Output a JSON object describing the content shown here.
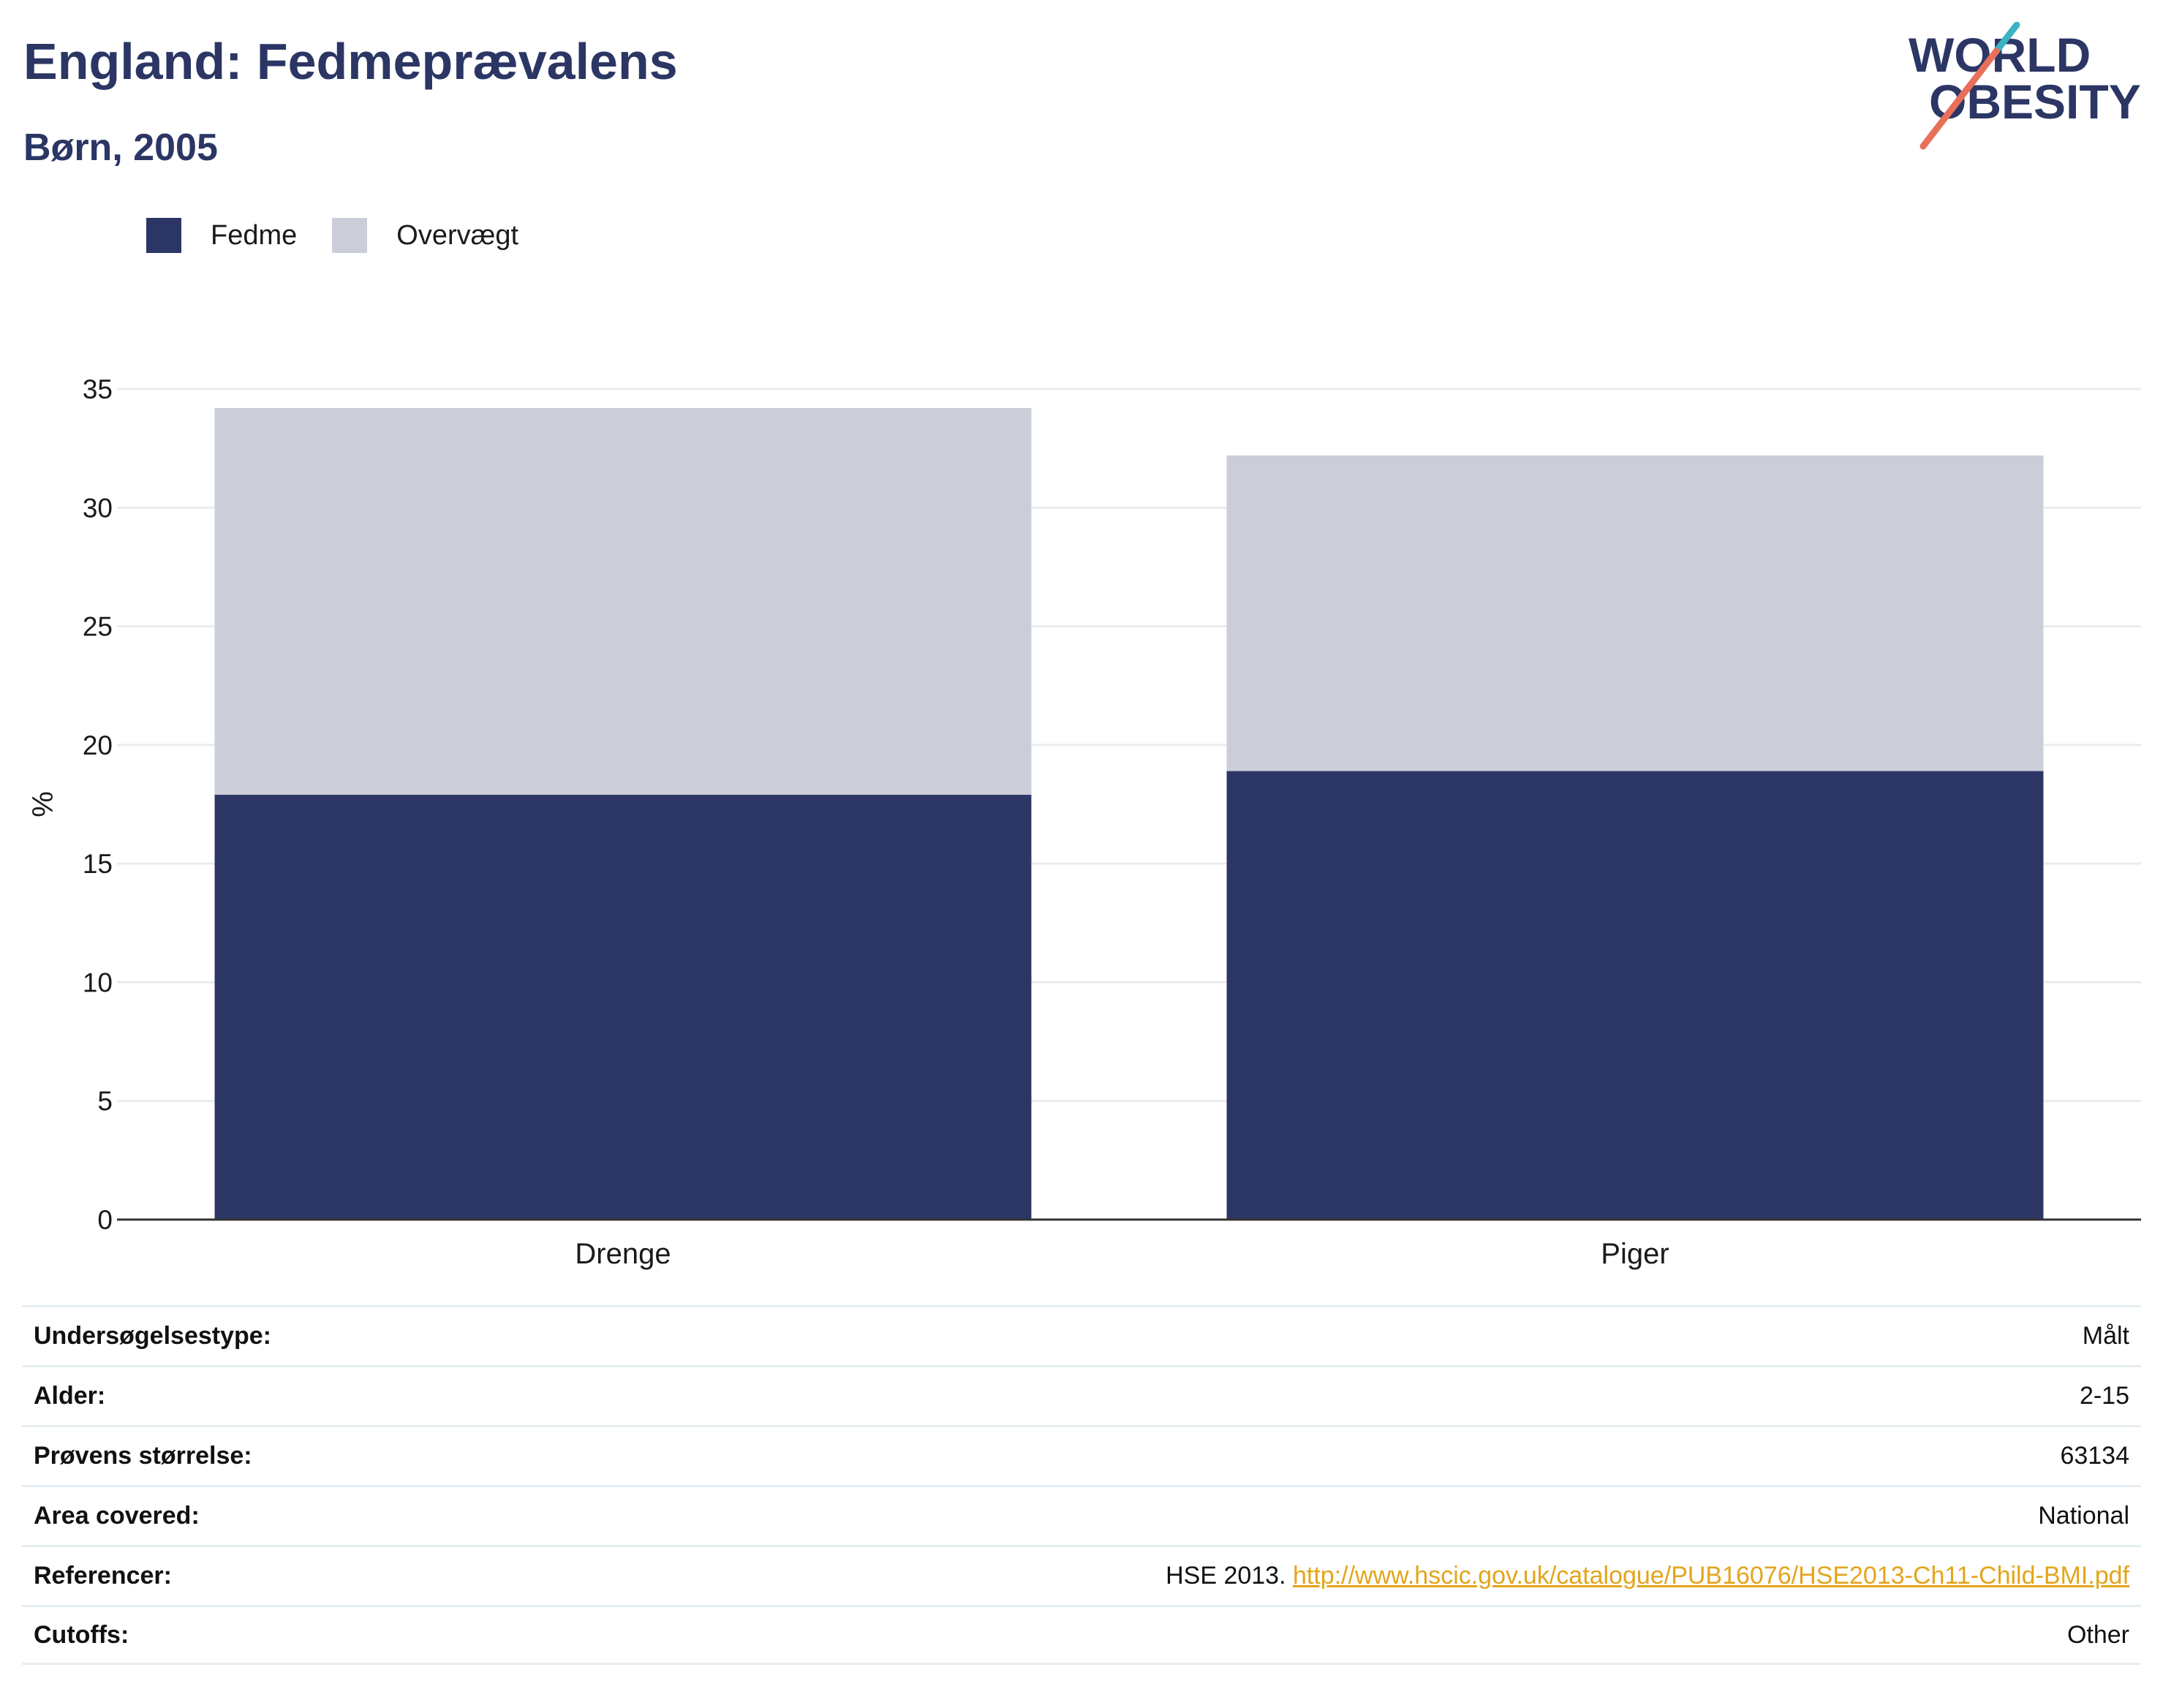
{
  "header": {
    "title": "England: Fedmeprævalens",
    "subtitle": "Børn, 2005"
  },
  "logo": {
    "line1": "WORLD",
    "line2": "OBESITY",
    "icon": "world-obesity-logo"
  },
  "colors": {
    "fedme": "#2b3664",
    "overvaegt": "#cbcdd8",
    "grid": "#e9ecef",
    "axis": "#333333",
    "link": "#e3a51a"
  },
  "chart_data": {
    "type": "bar",
    "stacked": true,
    "categories": [
      "Drenge",
      "Piger"
    ],
    "series": [
      {
        "name": "Fedme",
        "values": [
          17.9,
          18.9
        ]
      },
      {
        "name": "Overvægt",
        "values": [
          16.3,
          13.3
        ]
      }
    ],
    "ylabel": "%",
    "xlabel": "",
    "ylim": [
      0,
      35
    ],
    "yticks": [
      0,
      5,
      10,
      15,
      20,
      25,
      30,
      35
    ],
    "grid": true,
    "legend": "top-left"
  },
  "meta": {
    "rows": [
      {
        "label": "Undersøgelsestype:",
        "value": "Målt"
      },
      {
        "label": "Alder:",
        "value": "2-15"
      },
      {
        "label": "Prøvens størrelse:",
        "value": "63134"
      },
      {
        "label": "Area covered:",
        "value": "National"
      },
      {
        "label": "Referencer:",
        "value": "HSE 2013.",
        "link": "http://www.hscic.gov.uk/catalogue/PUB16076/HSE2013-Ch11-Child-BMI.pdf"
      },
      {
        "label": "Cutoffs:",
        "value": "Other"
      }
    ]
  }
}
